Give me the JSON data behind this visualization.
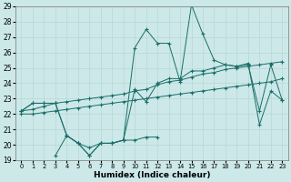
{
  "xlabel": "Humidex (Indice chaleur)",
  "bg_color": "#cce8e8",
  "grid_color": "#b8d8d8",
  "line_color": "#1a6e6a",
  "ylim": [
    19,
    29
  ],
  "yticks": [
    19,
    20,
    21,
    22,
    23,
    24,
    25,
    26,
    27,
    28,
    29
  ],
  "xticks": [
    0,
    1,
    2,
    3,
    4,
    5,
    6,
    7,
    8,
    9,
    10,
    11,
    12,
    13,
    14,
    15,
    16,
    17,
    18,
    19,
    20,
    21,
    22,
    23
  ],
  "x_all": [
    0,
    1,
    2,
    3,
    4,
    5,
    6,
    7,
    8,
    9,
    10,
    11,
    12,
    13,
    14,
    15,
    16,
    17,
    18,
    19,
    20,
    21,
    22,
    23
  ],
  "lines": {
    "jagged_main": [
      22.2,
      22.7,
      22.7,
      22.7,
      20.6,
      20.1,
      19.3,
      20.1,
      20.1,
      20.3,
      26.3,
      27.5,
      26.6,
      26.6,
      24.1,
      29.1,
      27.2,
      25.5,
      25.2,
      25.1,
      25.3,
      21.3,
      23.5,
      22.9
    ],
    "jagged_secondary": [
      22.2,
      22.7,
      22.7,
      22.7,
      20.6,
      20.1,
      19.3,
      20.1,
      20.1,
      20.3,
      23.6,
      22.8,
      24.0,
      24.3,
      24.3,
      24.8,
      24.8,
      25.0,
      25.2,
      25.1,
      25.2,
      22.2,
      25.2,
      22.9
    ],
    "trend_upper": [
      22.2,
      22.3,
      22.5,
      22.7,
      22.8,
      22.9,
      23.0,
      23.1,
      23.2,
      23.3,
      23.5,
      23.6,
      23.9,
      24.1,
      24.2,
      24.4,
      24.6,
      24.7,
      24.9,
      25.0,
      25.1,
      25.2,
      25.3,
      25.4
    ],
    "trend_lower_full": [
      22.0,
      22.0,
      22.1,
      22.2,
      22.3,
      22.4,
      22.5,
      22.6,
      22.7,
      22.8,
      22.9,
      23.0,
      23.1,
      23.2,
      23.3,
      23.4,
      23.5,
      23.6,
      23.7,
      23.8,
      23.9,
      24.0,
      24.1,
      24.3
    ],
    "lower_partial_x": [
      3,
      4,
      5,
      6,
      7,
      8,
      9,
      10,
      11,
      12
    ],
    "lower_partial_y": [
      19.3,
      20.6,
      20.1,
      19.8,
      20.1,
      20.1,
      20.3,
      20.3,
      20.5,
      20.5
    ]
  }
}
